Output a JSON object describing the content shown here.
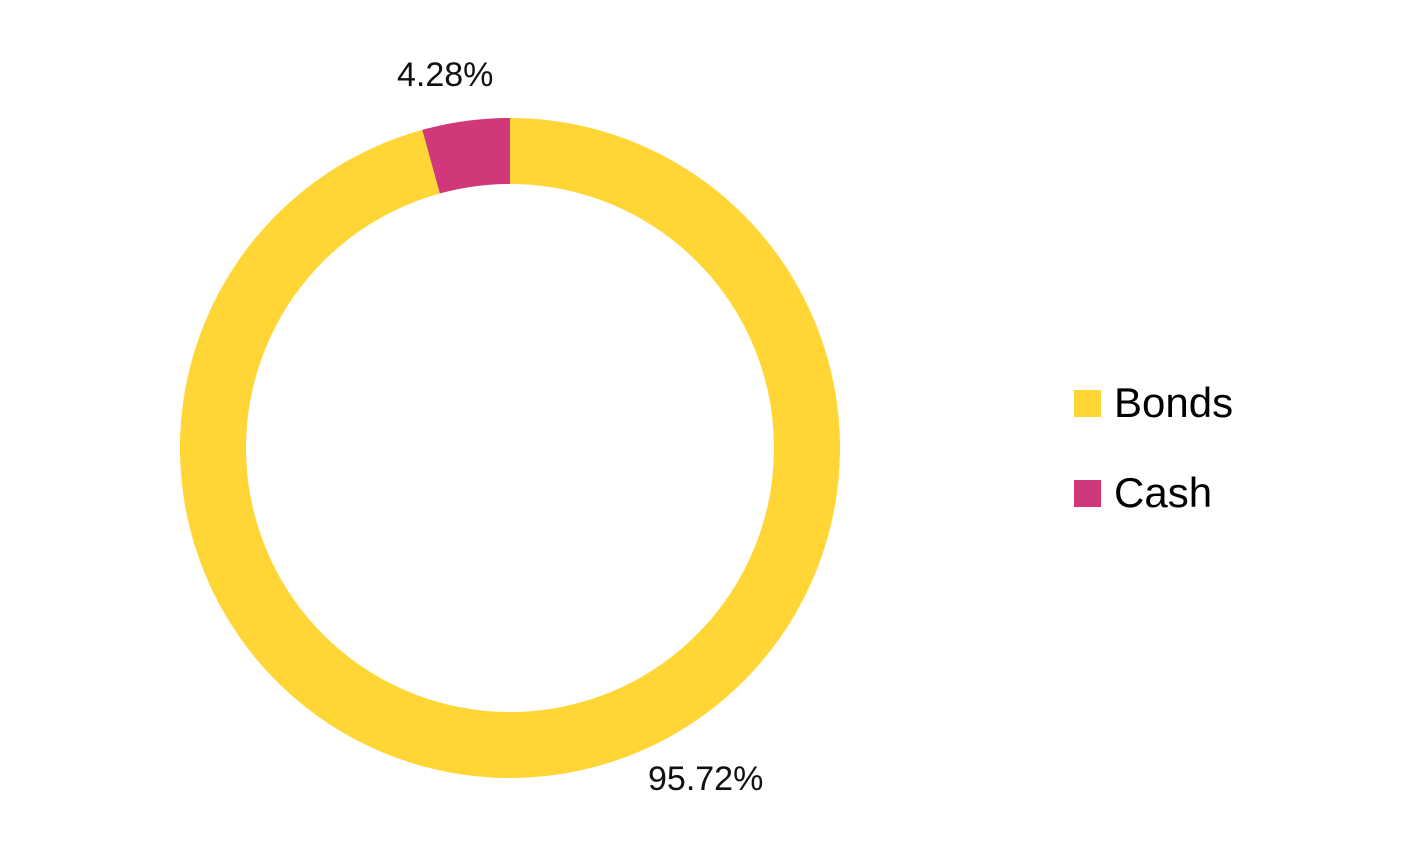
{
  "chart_data": {
    "type": "pie",
    "variant": "donut",
    "start_angle_deg": 0,
    "direction": "clockwise",
    "legend_placement": "right",
    "slices": [
      {
        "name": "Bonds",
        "value": 95.72,
        "label": "95.72%",
        "color": "#FFD635"
      },
      {
        "name": "Cash",
        "value": 4.28,
        "label": "4.28%",
        "color": "#D0387A"
      }
    ]
  }
}
